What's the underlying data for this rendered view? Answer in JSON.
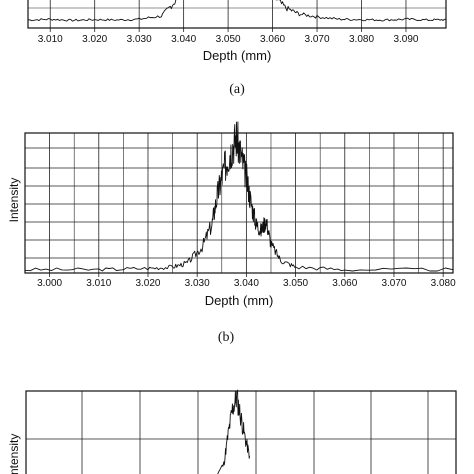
{
  "chart_data": [
    {
      "id": "a",
      "type": "line",
      "caption": "(a)",
      "xlabel": "Depth (mm)",
      "ylabel": "",
      "xlim": [
        3.005,
        3.099
      ],
      "xticks": [
        3.01,
        3.02,
        3.03,
        3.04,
        3.05,
        3.06,
        3.07,
        3.08,
        3.09
      ],
      "xtick_labels": [
        "3.010",
        "3.020",
        "3.030",
        "3.040",
        "3.050",
        "3.060",
        "3.070",
        "3.080",
        "3.090"
      ],
      "grid": true,
      "series": [
        {
          "x": [
            3.005,
            3.01,
            3.015,
            3.02,
            3.025,
            3.03,
            3.035,
            3.038,
            3.04,
            3.043,
            3.046,
            3.05,
            3.054,
            3.057,
            3.06,
            3.063,
            3.066,
            3.07,
            3.075,
            3.08,
            3.085,
            3.09,
            3.095,
            3.099
          ],
          "y": [
            0.1,
            0.12,
            0.09,
            0.11,
            0.1,
            0.12,
            0.2,
            0.55,
            0.95,
            1.0,
            1.0,
            1.0,
            0.95,
            1.0,
            0.7,
            0.4,
            0.25,
            0.18,
            0.12,
            0.11,
            0.1,
            0.12,
            0.1,
            0.11
          ]
        }
      ]
    },
    {
      "id": "b",
      "type": "line",
      "caption": "(b)",
      "xlabel": "Depth (mm)",
      "ylabel": "Intensity",
      "xlim": [
        2.995,
        3.082
      ],
      "xticks": [
        3.0,
        3.01,
        3.02,
        3.03,
        3.04,
        3.05,
        3.06,
        3.07,
        3.08
      ],
      "xtick_labels": [
        "3.000",
        "3.010",
        "3.020",
        "3.030",
        "3.040",
        "3.050",
        "3.060",
        "3.070",
        "3.080"
      ],
      "grid": true,
      "series": [
        {
          "x": [
            2.995,
            3.01,
            3.02,
            3.025,
            3.028,
            3.031,
            3.033,
            3.034,
            3.035,
            3.036,
            3.037,
            3.038,
            3.039,
            3.04,
            3.041,
            3.042,
            3.043,
            3.044,
            3.045,
            3.047,
            3.05,
            3.06,
            3.082
          ],
          "y": [
            0.01,
            0.01,
            0.02,
            0.03,
            0.06,
            0.18,
            0.35,
            0.55,
            0.7,
            0.82,
            0.92,
            1.0,
            0.85,
            0.7,
            0.5,
            0.35,
            0.3,
            0.38,
            0.2,
            0.08,
            0.03,
            0.01,
            0.01
          ]
        }
      ]
    },
    {
      "id": "c",
      "type": "line",
      "caption": "",
      "xlabel": "",
      "ylabel": "Intensity",
      "grid": true,
      "series": [
        {
          "x": [
            0.0,
            0.4,
            0.44,
            0.46,
            0.47,
            0.48,
            0.49,
            0.5,
            0.51,
            0.52
          ],
          "y": [
            0.0,
            0.0,
            0.05,
            0.2,
            0.55,
            0.85,
            1.0,
            0.75,
            0.5,
            0.3
          ]
        }
      ]
    }
  ]
}
